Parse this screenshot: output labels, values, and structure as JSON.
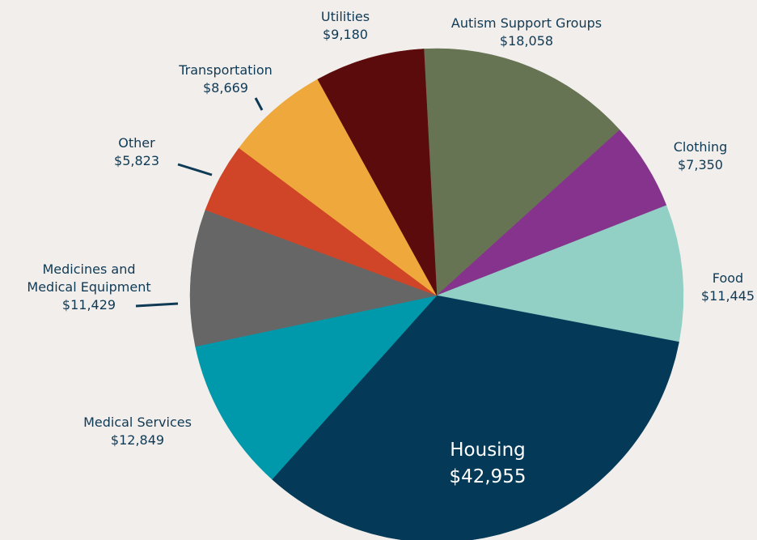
{
  "chart_data": {
    "type": "pie",
    "categories": [
      "Autism Support Groups",
      "Clothing",
      "Food",
      "Housing",
      "Medical Services",
      "Medicines and\nMedical Equipment",
      "Other",
      "Transportation",
      "Utilities"
    ],
    "values": [
      18058,
      7350,
      11445,
      42955,
      12849,
      11429,
      5823,
      8669,
      9180
    ],
    "value_labels": [
      "$18,058",
      "$7,350",
      "$11,445",
      "$42,955",
      "$12,849",
      "$11,429",
      "$5,823",
      "$8,669",
      "$9,180"
    ],
    "colors": [
      "#667454",
      "#85338c",
      "#92d0c5",
      "#043a58",
      "#0099ab",
      "#666666",
      "#d04527",
      "#eea83b",
      "#5c0b0c"
    ]
  }
}
